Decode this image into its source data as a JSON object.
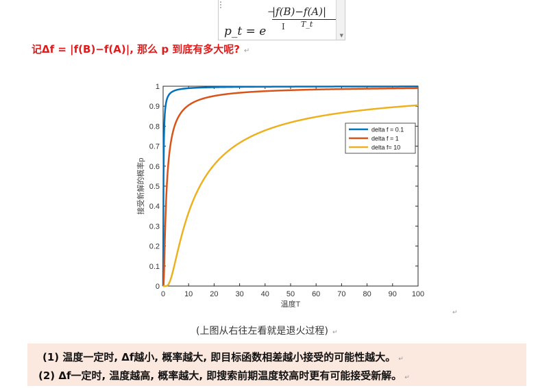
{
  "formula": {
    "lhs": "p_t = e",
    "exponent_sign": "−",
    "numerator": "|f(B)−f(A)|",
    "denominator": "T_t"
  },
  "heading": {
    "text": "记Δf = |f(B)−f(A)|, 那么 p 到底有多大呢?"
  },
  "chart_data": {
    "type": "line",
    "title": "",
    "xlabel": "温度T",
    "ylabel": "接受新解的概率p",
    "xlim": [
      0,
      100
    ],
    "ylim": [
      0,
      1
    ],
    "x_ticks": [
      "0",
      "10",
      "20",
      "30",
      "40",
      "50",
      "60",
      "70",
      "80",
      "90",
      "100"
    ],
    "y_ticks": [
      "0",
      "0.1",
      "0.2",
      "0.3",
      "0.4",
      "0.5",
      "0.6",
      "0.7",
      "0.8",
      "0.9",
      "1"
    ],
    "grid": false,
    "legend_position": "right-middle",
    "function": "p = exp(-delta_f / T)",
    "series": [
      {
        "name": "delta f = 0.1",
        "delta_f": 0.1,
        "color": "#0072BD",
        "x": [
          0.5,
          1,
          2,
          5,
          10,
          20,
          50,
          100
        ],
        "values": [
          0.819,
          0.905,
          0.951,
          0.98,
          0.99,
          0.995,
          0.998,
          0.999
        ]
      },
      {
        "name": "delta f = 1",
        "delta_f": 1,
        "color": "#D95319",
        "x": [
          0.5,
          1,
          2,
          5,
          10,
          20,
          50,
          100
        ],
        "values": [
          0.135,
          0.368,
          0.607,
          0.819,
          0.905,
          0.951,
          0.98,
          0.99
        ]
      },
      {
        "name": "delta f= 10",
        "delta_f": 10,
        "color": "#EDB120",
        "x": [
          1,
          2,
          5,
          10,
          20,
          50,
          100
        ],
        "values": [
          4.54e-05,
          0.0067,
          0.135,
          0.368,
          0.607,
          0.819,
          0.905
        ]
      }
    ]
  },
  "caption": "(上图从右往左看就是退火过程)",
  "summary": {
    "line1": "(1) 温度一定时, Δf越小, 概率越大, 即目标函数相差越小接受的可能性越大。",
    "line2": "(2) Δf一定时, 温度越高, 概率越大, 即搜索前期温度较高时更有可能接受新解。"
  },
  "paragraph_mark": "↵"
}
